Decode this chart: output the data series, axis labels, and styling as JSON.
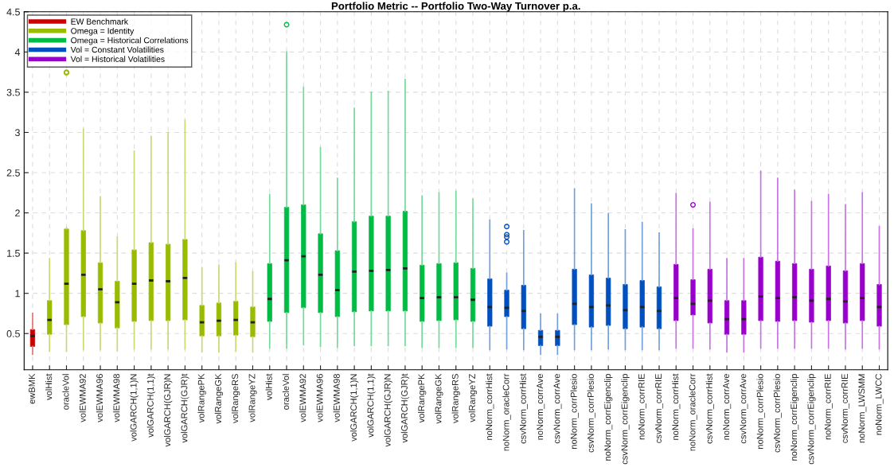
{
  "chart_data": {
    "type": "box",
    "title": "Portfolio Metric -- Portfolio Two-Way Turnover p.a.",
    "categories": [
      "ewBMK",
      "volHist",
      "oracleVol",
      "volEWMA92",
      "volEWMA96",
      "volEWMA98",
      "volGARCH(1,1)N",
      "volGARCH(1,1)t",
      "volGARCH(GJR)N",
      "volGARCH(GJR)t",
      "volRangePK",
      "volRangeGK",
      "volRangeRS",
      "volRangeYZ",
      "volHist",
      "oracleVol",
      "volEWMA92",
      "volEWMA96",
      "volEWMA98",
      "volGARCH(1,1)N",
      "volGARCH(1,1)t",
      "volGARCH(GJR)N",
      "volGARCH(GJR)t",
      "volRangePK",
      "volRangeGK",
      "volRangeRS",
      "volRangeYZ",
      "noNorm_corrHist",
      "noNorm_oracleCorr",
      "csvNorm_corrHist",
      "noNorm_corrAve",
      "csvNorm_corrAve",
      "noNorm_corrPlesio",
      "csvNorm_corrPlesio",
      "noNorm_corrEigenclip",
      "csvNorm_corrEigenclip",
      "noNorm_corrRIE",
      "csvNorm_corrRIE",
      "noNorm_corrHist",
      "noNorm_oracleCorr",
      "csvNorm_corrHist",
      "noNorm_corrAve",
      "csvNorm_corrAve",
      "noNorm_corrPlesio",
      "csvNorm_corrPlesio",
      "noNorm_corrEigenclip",
      "csvNorm_corrEigenclip",
      "noNorm_corrRIE",
      "csvNorm_corrRIE",
      "noNorm_LWSMM",
      "noNorm_LWCC"
    ],
    "series": [
      {
        "name": "EW Benchmark",
        "color": "#cc0000",
        "boxes": [
          {
            "low": 0.24,
            "q1": 0.34,
            "median": 0.47,
            "q3": 0.55,
            "high": 0.75
          },
          null,
          null,
          null,
          null,
          null,
          null,
          null,
          null,
          null,
          null,
          null,
          null,
          null,
          null,
          null,
          null,
          null,
          null,
          null,
          null,
          null,
          null,
          null,
          null,
          null,
          null,
          null,
          null,
          null,
          null,
          null,
          null,
          null,
          null,
          null,
          null,
          null,
          null,
          null,
          null,
          null,
          null,
          null,
          null,
          null,
          null,
          null,
          null,
          null,
          null
        ]
      },
      {
        "name": "Omega = Identity",
        "color": "#99bb00",
        "boxes": [
          null,
          {
            "low": 0.28,
            "q1": 0.49,
            "median": 0.67,
            "q3": 0.91,
            "high": 1.43
          },
          {
            "low": 0.28,
            "q1": 0.61,
            "median": 1.12,
            "q3": 1.8,
            "high": 1.82,
            "outliers": [
              3.75,
              3.74
            ]
          },
          {
            "low": 0.3,
            "q1": 0.71,
            "median": 1.23,
            "q3": 1.78,
            "high": 3.04
          },
          {
            "low": 0.3,
            "q1": 0.63,
            "median": 1.05,
            "q3": 1.38,
            "high": 2.2
          },
          {
            "low": 0.29,
            "q1": 0.57,
            "median": 0.89,
            "q3": 1.15,
            "high": 1.7
          },
          {
            "low": 0.31,
            "q1": 0.65,
            "median": 1.12,
            "q3": 1.54,
            "high": 2.77
          },
          {
            "low": 0.31,
            "q1": 0.66,
            "median": 1.16,
            "q3": 1.63,
            "high": 2.95
          },
          {
            "low": 0.31,
            "q1": 0.66,
            "median": 1.15,
            "q3": 1.61,
            "high": 3.0
          },
          {
            "low": 0.31,
            "q1": 0.67,
            "median": 1.19,
            "q3": 1.67,
            "high": 3.15
          },
          {
            "low": 0.27,
            "q1": 0.47,
            "median": 0.64,
            "q3": 0.85,
            "high": 1.32
          },
          {
            "low": 0.27,
            "q1": 0.47,
            "median": 0.66,
            "q3": 0.88,
            "high": 1.35
          },
          {
            "low": 0.28,
            "q1": 0.48,
            "median": 0.67,
            "q3": 0.9,
            "high": 1.38
          },
          {
            "low": 0.27,
            "q1": 0.46,
            "median": 0.64,
            "q3": 0.83,
            "high": 1.27
          },
          null,
          null,
          null,
          null,
          null,
          null,
          null,
          null,
          null,
          null,
          null,
          null,
          null,
          null,
          null,
          null,
          null,
          null,
          null,
          null,
          null,
          null,
          null,
          null,
          null,
          null,
          null,
          null,
          null,
          null,
          null,
          null,
          null,
          null,
          null,
          null,
          null
        ]
      },
      {
        "name": "Omega = Historical Correlations",
        "color": "#00bb44",
        "boxes": [
          null,
          null,
          null,
          null,
          null,
          null,
          null,
          null,
          null,
          null,
          null,
          null,
          null,
          null,
          {
            "low": 0.32,
            "q1": 0.65,
            "median": 0.93,
            "q3": 1.37,
            "high": 2.23
          },
          {
            "low": 0.32,
            "q1": 0.76,
            "median": 1.41,
            "q3": 2.07,
            "high": 4.0,
            "outliers": [
              4.34
            ]
          },
          {
            "low": 0.36,
            "q1": 0.82,
            "median": 1.46,
            "q3": 2.1,
            "high": 3.56
          },
          {
            "low": 0.34,
            "q1": 0.76,
            "median": 1.23,
            "q3": 1.74,
            "high": 2.81
          },
          {
            "low": 0.33,
            "q1": 0.71,
            "median": 1.04,
            "q3": 1.53,
            "high": 2.43
          },
          {
            "low": 0.35,
            "q1": 0.77,
            "median": 1.27,
            "q3": 1.89,
            "high": 3.3
          },
          {
            "low": 0.35,
            "q1": 0.78,
            "median": 1.28,
            "q3": 1.96,
            "high": 3.5
          },
          {
            "low": 0.35,
            "q1": 0.78,
            "median": 1.29,
            "q3": 1.96,
            "high": 3.51
          },
          {
            "low": 0.35,
            "q1": 0.78,
            "median": 1.31,
            "q3": 2.02,
            "high": 3.66
          },
          {
            "low": 0.33,
            "q1": 0.65,
            "median": 0.94,
            "q3": 1.35,
            "high": 2.21
          },
          {
            "low": 0.33,
            "q1": 0.66,
            "median": 0.95,
            "q3": 1.37,
            "high": 2.25
          },
          {
            "low": 0.33,
            "q1": 0.67,
            "median": 0.95,
            "q3": 1.38,
            "high": 2.27
          },
          {
            "low": 0.33,
            "q1": 0.65,
            "median": 0.92,
            "q3": 1.31,
            "high": 2.17
          },
          null,
          null,
          null,
          null,
          null,
          null,
          null,
          null,
          null,
          null,
          null,
          null,
          null,
          null,
          null,
          null,
          null,
          null,
          null,
          null,
          null,
          null,
          null,
          null
        ]
      },
      {
        "name": "Vol = Constant Volatilities",
        "color": "#0050c0",
        "boxes": [
          null,
          null,
          null,
          null,
          null,
          null,
          null,
          null,
          null,
          null,
          null,
          null,
          null,
          null,
          null,
          null,
          null,
          null,
          null,
          null,
          null,
          null,
          null,
          null,
          null,
          null,
          null,
          {
            "low": 0.3,
            "q1": 0.59,
            "median": 0.83,
            "q3": 1.18,
            "high": 1.91
          },
          {
            "low": 0.31,
            "q1": 0.71,
            "median": 0.82,
            "q3": 1.04,
            "high": 1.25,
            "outliers": [
              1.83,
              1.73,
              1.7,
              1.64
            ]
          },
          {
            "low": 0.3,
            "q1": 0.56,
            "median": 0.78,
            "q3": 1.1,
            "high": 1.78
          },
          {
            "low": 0.24,
            "q1": 0.35,
            "median": 0.46,
            "q3": 0.54,
            "high": 0.74
          },
          {
            "low": 0.24,
            "q1": 0.35,
            "median": 0.46,
            "q3": 0.54,
            "high": 0.74
          },
          {
            "low": 0.3,
            "q1": 0.61,
            "median": 0.87,
            "q3": 1.3,
            "high": 2.3
          },
          {
            "low": 0.3,
            "q1": 0.58,
            "median": 0.83,
            "q3": 1.23,
            "high": 2.11
          },
          {
            "low": 0.31,
            "q1": 0.6,
            "median": 0.85,
            "q3": 1.19,
            "high": 1.99
          },
          {
            "low": 0.3,
            "q1": 0.56,
            "median": 0.79,
            "q3": 1.11,
            "high": 1.79
          },
          {
            "low": 0.3,
            "q1": 0.58,
            "median": 0.83,
            "q3": 1.16,
            "high": 1.88
          },
          {
            "low": 0.3,
            "q1": 0.56,
            "median": 0.78,
            "q3": 1.08,
            "high": 1.75
          },
          null,
          null,
          null,
          null,
          null,
          null,
          null,
          null,
          null,
          null,
          null,
          null,
          null
        ]
      },
      {
        "name": "Vol = Historical Volatilities",
        "color": "#9900cc",
        "boxes": [
          null,
          null,
          null,
          null,
          null,
          null,
          null,
          null,
          null,
          null,
          null,
          null,
          null,
          null,
          null,
          null,
          null,
          null,
          null,
          null,
          null,
          null,
          null,
          null,
          null,
          null,
          null,
          null,
          null,
          null,
          null,
          null,
          null,
          null,
          null,
          null,
          null,
          null,
          {
            "low": 0.32,
            "q1": 0.66,
            "median": 0.94,
            "q3": 1.36,
            "high": 2.24
          },
          {
            "low": 0.32,
            "q1": 0.73,
            "median": 0.87,
            "q3": 1.17,
            "high": 1.8,
            "outliers": [
              2.1
            ]
          },
          {
            "low": 0.31,
            "q1": 0.63,
            "median": 0.91,
            "q3": 1.3,
            "high": 2.13
          },
          {
            "low": 0.27,
            "q1": 0.49,
            "median": 0.68,
            "q3": 0.91,
            "high": 1.43
          },
          {
            "low": 0.27,
            "q1": 0.49,
            "median": 0.68,
            "q3": 0.91,
            "high": 1.43
          },
          {
            "low": 0.32,
            "q1": 0.66,
            "median": 0.96,
            "q3": 1.45,
            "high": 2.52
          },
          {
            "low": 0.32,
            "q1": 0.65,
            "median": 0.94,
            "q3": 1.4,
            "high": 2.43
          },
          {
            "low": 0.32,
            "q1": 0.66,
            "median": 0.95,
            "q3": 1.37,
            "high": 2.28
          },
          {
            "low": 0.32,
            "q1": 0.64,
            "median": 0.91,
            "q3": 1.3,
            "high": 2.14
          },
          {
            "low": 0.32,
            "q1": 0.66,
            "median": 0.93,
            "q3": 1.34,
            "high": 2.23
          },
          {
            "low": 0.31,
            "q1": 0.63,
            "median": 0.9,
            "q3": 1.28,
            "high": 2.1
          },
          {
            "low": 0.32,
            "q1": 0.66,
            "median": 0.94,
            "q3": 1.37,
            "high": 2.25
          },
          {
            "low": 0.31,
            "q1": 0.59,
            "median": 0.83,
            "q3": 1.11,
            "high": 1.83
          }
        ]
      }
    ],
    "ylim": [
      0.05,
      4.5
    ],
    "yticks": [
      0.5,
      1,
      1.5,
      2,
      2.5,
      3,
      3.5,
      4,
      4.5
    ],
    "grid": true,
    "legend": "top left"
  }
}
